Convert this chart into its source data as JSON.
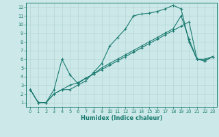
{
  "xlabel": "Humidex (Indice chaleur)",
  "bg_color": "#cce8e8",
  "grid_color": "#b8d8d8",
  "line_color": "#1a7a70",
  "xlim": [
    -0.5,
    23.5
  ],
  "ylim": [
    0.5,
    12.5
  ],
  "xticks": [
    0,
    1,
    2,
    3,
    4,
    5,
    6,
    7,
    8,
    9,
    10,
    11,
    12,
    13,
    14,
    15,
    16,
    17,
    18,
    19,
    20,
    21,
    22,
    23
  ],
  "yticks": [
    1,
    2,
    3,
    4,
    5,
    6,
    7,
    8,
    9,
    10,
    11,
    12
  ],
  "line1_x": [
    0,
    1,
    2,
    3,
    4,
    5,
    6,
    7,
    8,
    9,
    10,
    11,
    12,
    13,
    14,
    15,
    16,
    17,
    18,
    19,
    20,
    21,
    22,
    23
  ],
  "line1_y": [
    2.5,
    1.0,
    1.0,
    2.0,
    2.5,
    2.5,
    3.0,
    3.5,
    4.5,
    5.5,
    7.5,
    8.5,
    9.5,
    11.0,
    11.2,
    11.3,
    11.5,
    11.8,
    12.2,
    11.8,
    8.0,
    6.0,
    6.0,
    6.3
  ],
  "line2_x": [
    0,
    1,
    2,
    3,
    4,
    5,
    6,
    7,
    8,
    9,
    10,
    11,
    12,
    13,
    14,
    15,
    16,
    17,
    18,
    19,
    20,
    21,
    22,
    23
  ],
  "line2_y": [
    2.5,
    1.0,
    1.0,
    2.5,
    6.0,
    4.2,
    3.2,
    3.8,
    4.3,
    5.0,
    5.5,
    6.0,
    6.5,
    7.0,
    7.5,
    8.0,
    8.5,
    9.0,
    9.5,
    11.0,
    8.3,
    6.0,
    5.8,
    6.3
  ],
  "line3_x": [
    0,
    1,
    2,
    3,
    4,
    5,
    6,
    7,
    8,
    9,
    10,
    11,
    12,
    13,
    14,
    15,
    16,
    17,
    18,
    19,
    20,
    21,
    22,
    23
  ],
  "line3_y": [
    2.5,
    1.0,
    1.0,
    2.0,
    2.5,
    3.0,
    3.3,
    3.8,
    4.3,
    4.8,
    5.3,
    5.8,
    6.3,
    6.8,
    7.3,
    7.8,
    8.3,
    8.8,
    9.3,
    9.8,
    10.3,
    6.0,
    5.8,
    6.3
  ]
}
